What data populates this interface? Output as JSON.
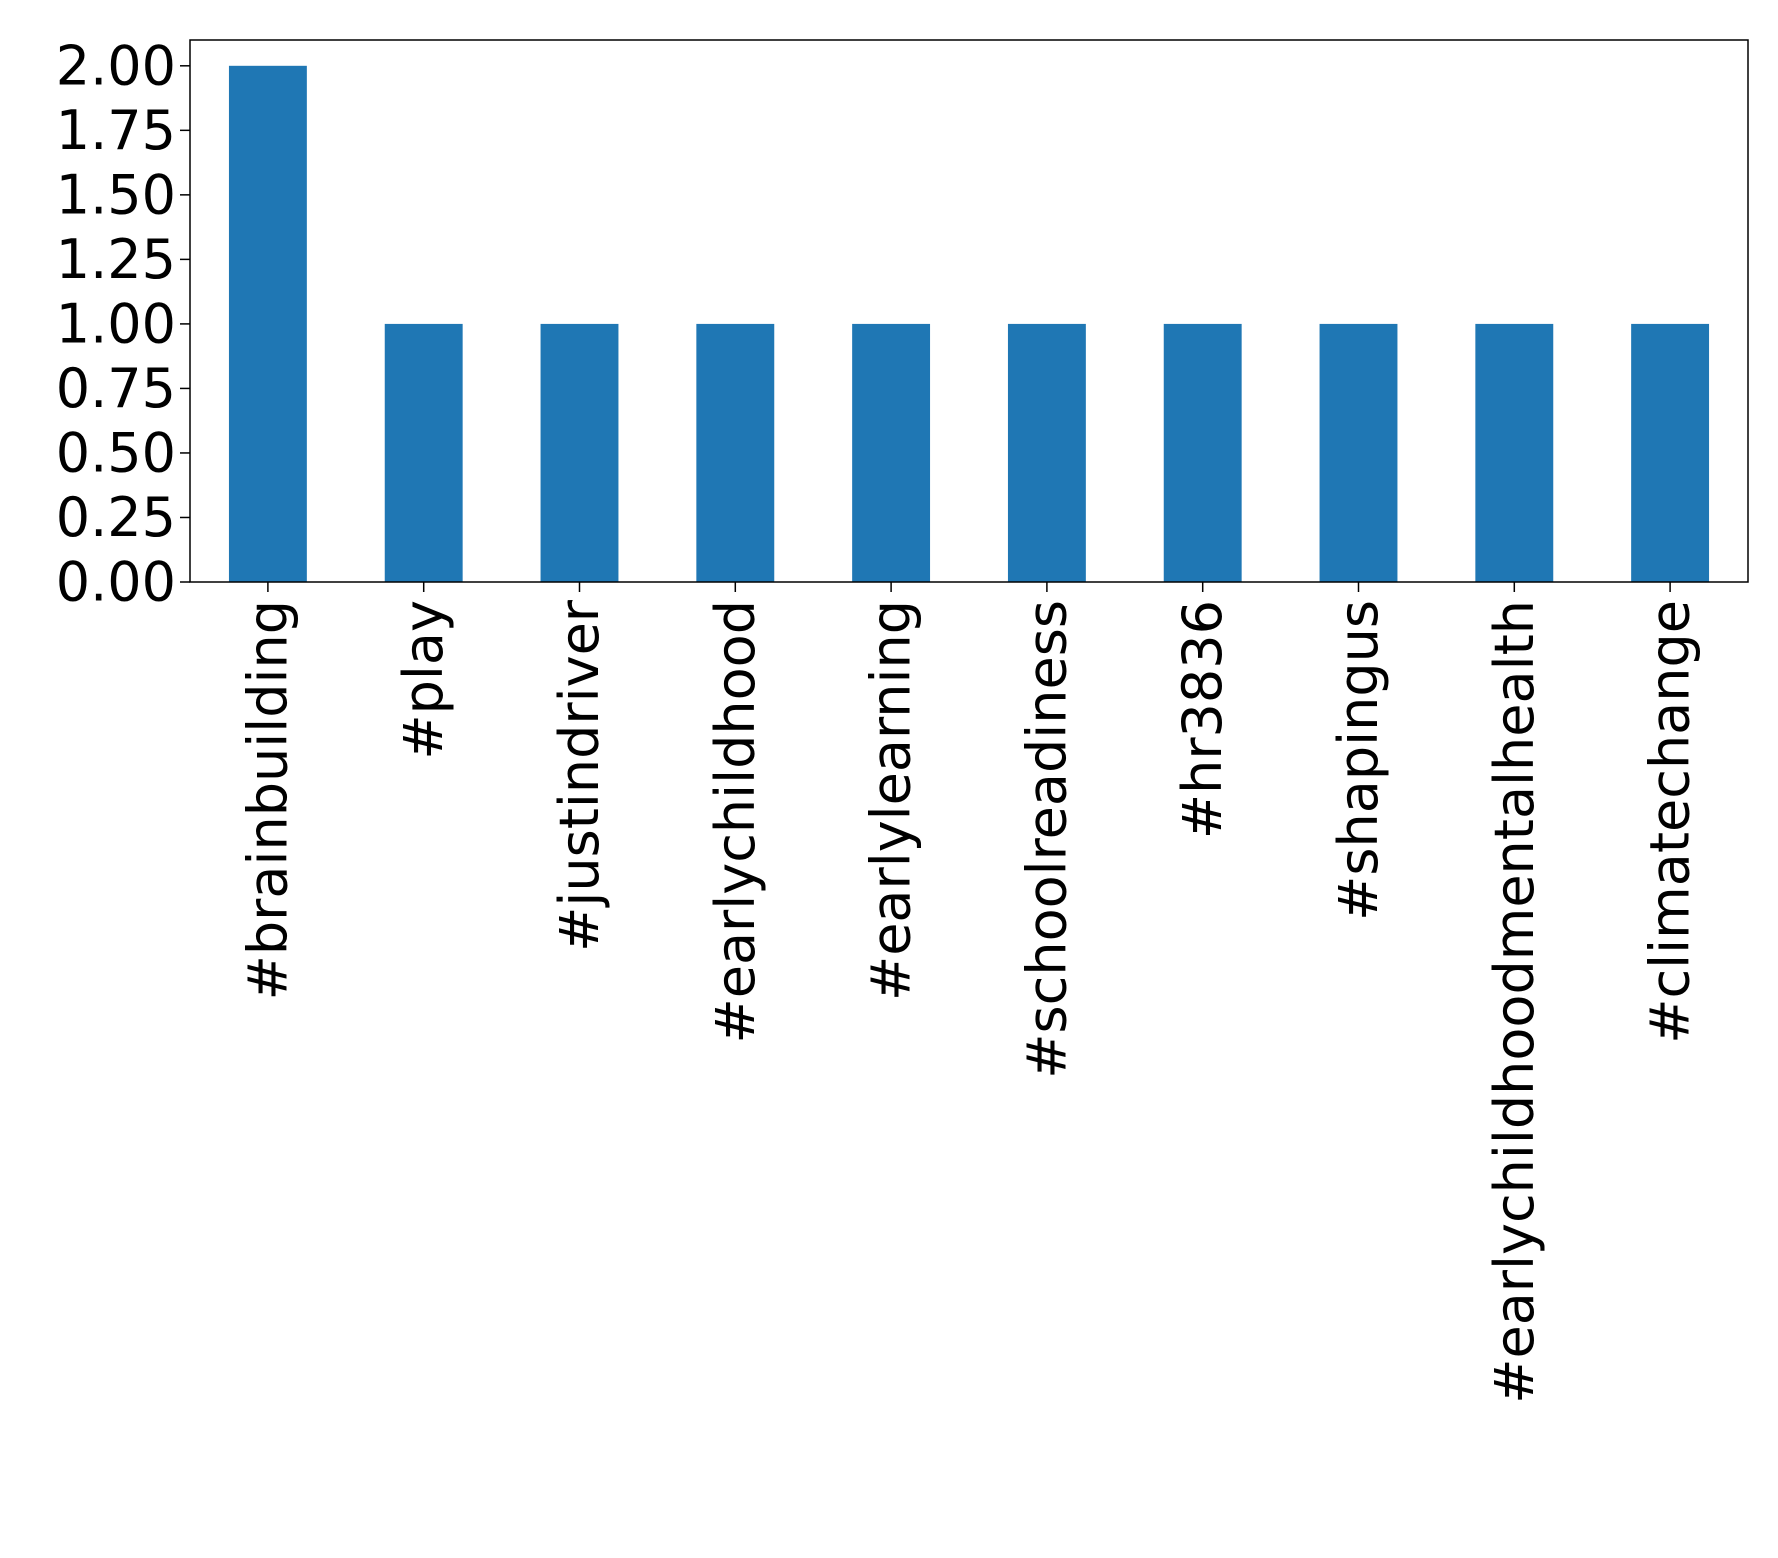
{
  "chart_data": {
    "type": "bar",
    "title": "",
    "xlabel": "",
    "ylabel": "",
    "categories": [
      "#brainbuilding",
      "#play",
      "#justindriver",
      "#earlychildhood",
      "#earlylearning",
      "#schoolreadiness",
      "#hr3836",
      "#shapingus",
      "#earlychildhoodmentalhealth",
      "#climatechange"
    ],
    "values": [
      2,
      1,
      1,
      1,
      1,
      1,
      1,
      1,
      1,
      1
    ],
    "ylim": [
      0,
      2.1
    ],
    "yticks": [
      "0.00",
      "0.25",
      "0.50",
      "0.75",
      "1.00",
      "1.25",
      "1.50",
      "1.75",
      "2.00"
    ],
    "grid": false,
    "legend": "none",
    "bar_color": "#1f77b4"
  }
}
